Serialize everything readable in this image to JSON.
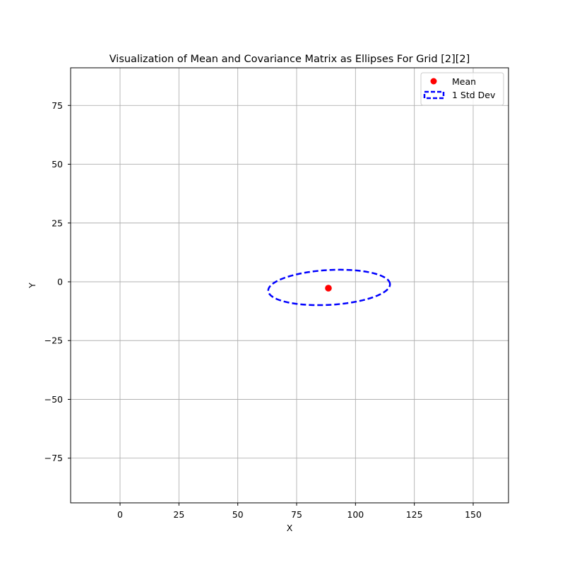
{
  "chart_data": {
    "type": "scatter",
    "title": "Visualization of Mean and Covariance Matrix as Ellipses For Grid [2][2]",
    "xlabel": "X",
    "ylabel": "Y",
    "xlim": [
      -21,
      165
    ],
    "ylim": [
      -94,
      91
    ],
    "xticks": [
      0,
      25,
      50,
      75,
      100,
      125,
      150
    ],
    "yticks": [
      75,
      50,
      25,
      0,
      -25,
      -50,
      -75
    ],
    "grid": true,
    "legend": {
      "placement": "upper right",
      "entries": [
        {
          "label": "Mean",
          "marker": "dot",
          "color": "#ff0000"
        },
        {
          "label": "1 Std Dev",
          "marker": "dashed-rect",
          "color": "#0000ff"
        }
      ]
    },
    "mean": {
      "x": 88.5,
      "y": -2.7
    },
    "ellipse": {
      "center": {
        "x": 88.8,
        "y": -2.4
      },
      "semi_major": 25.9,
      "semi_minor": 7.4,
      "angle_deg": 3.2,
      "style": "dashed",
      "color": "#0000ff"
    }
  }
}
